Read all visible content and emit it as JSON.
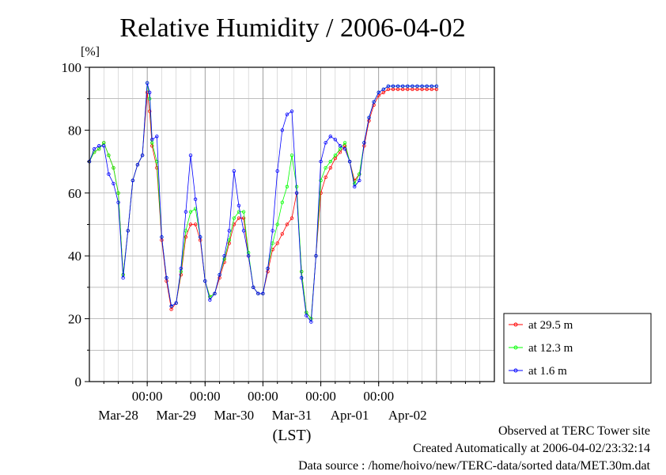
{
  "chart_data": {
    "type": "line",
    "title": "Relative Humidity / 2006-04-02",
    "ylabel": "[%]",
    "xlabel": "(LST)",
    "ylim": [
      0,
      100
    ],
    "yticks": [
      0,
      20,
      40,
      60,
      80,
      100
    ],
    "xlim": [
      "2006-03-27 00:00",
      "2006-04-03 00:00"
    ],
    "xticks": [
      {
        "time": "2006-03-28 00:00",
        "label": "00:00",
        "date": "Mar-28"
      },
      {
        "time": "2006-03-29 00:00",
        "label": "00:00",
        "date": "Mar-29"
      },
      {
        "time": "2006-03-30 00:00",
        "label": "00:00",
        "date": "Mar-30"
      },
      {
        "time": "2006-03-31 00:00",
        "label": "00:00",
        "date": "Mar-31"
      },
      {
        "time": "2006-04-01 00:00",
        "label": "00:00",
        "date": "Apr-01"
      }
    ],
    "date_labels": [
      {
        "time": "2006-03-27 12:00",
        "label": "Mar-28"
      },
      {
        "time": "2006-03-28 12:00",
        "label": "Mar-29"
      },
      {
        "time": "2006-03-29 12:00",
        "label": "Mar-30"
      },
      {
        "time": "2006-03-30 12:00",
        "label": "Mar-31"
      },
      {
        "time": "2006-03-31 12:00",
        "label": "Apr-01"
      },
      {
        "time": "2006-04-01 12:00",
        "label": "Apr-02"
      }
    ],
    "grid": true,
    "legend_position": "bottom-right, outside plot",
    "x": [
      "2006-03-27 00:00",
      "2006-03-27 02:00",
      "2006-03-27 04:00",
      "2006-03-27 06:00",
      "2006-03-27 08:00",
      "2006-03-27 10:00",
      "2006-03-27 12:00",
      "2006-03-27 14:00",
      "2006-03-27 16:00",
      "2006-03-27 18:00",
      "2006-03-27 20:00",
      "2006-03-27 22:00",
      "2006-03-28 00:00",
      "2006-03-28 01:00",
      "2006-03-28 02:00",
      "2006-03-28 04:00",
      "2006-03-28 06:00",
      "2006-03-28 08:00",
      "2006-03-28 10:00",
      "2006-03-28 12:00",
      "2006-03-28 14:00",
      "2006-03-28 16:00",
      "2006-03-28 18:00",
      "2006-03-28 20:00",
      "2006-03-28 22:00",
      "2006-03-29 00:00",
      "2006-03-29 02:00",
      "2006-03-29 04:00",
      "2006-03-29 06:00",
      "2006-03-29 08:00",
      "2006-03-29 10:00",
      "2006-03-29 12:00",
      "2006-03-29 14:00",
      "2006-03-29 16:00",
      "2006-03-29 18:00",
      "2006-03-29 20:00",
      "2006-03-29 22:00",
      "2006-03-30 00:00",
      "2006-03-30 02:00",
      "2006-03-30 04:00",
      "2006-03-30 06:00",
      "2006-03-30 08:00",
      "2006-03-30 10:00",
      "2006-03-30 12:00",
      "2006-03-30 14:00",
      "2006-03-30 16:00",
      "2006-03-30 18:00",
      "2006-03-30 20:00",
      "2006-03-30 22:00",
      "2006-03-31 00:00",
      "2006-03-31 02:00",
      "2006-03-31 04:00",
      "2006-03-31 06:00",
      "2006-03-31 08:00",
      "2006-03-31 10:00",
      "2006-03-31 12:00",
      "2006-03-31 14:00",
      "2006-03-31 16:00",
      "2006-03-31 18:00",
      "2006-03-31 20:00",
      "2006-03-31 22:00",
      "2006-04-01 00:00",
      "2006-04-01 02:00",
      "2006-04-01 04:00",
      "2006-04-01 06:00",
      "2006-04-01 08:00",
      "2006-04-01 10:00",
      "2006-04-01 12:00",
      "2006-04-01 14:00",
      "2006-04-01 16:00",
      "2006-04-01 18:00",
      "2006-04-01 20:00",
      "2006-04-01 22:00",
      "2006-04-02 00:00"
    ],
    "series": [
      {
        "name": "at 29.5 m",
        "color": "#ff0000",
        "values": [
          70,
          73,
          74,
          76,
          72,
          68,
          60,
          34,
          48,
          64,
          69,
          72,
          92,
          86,
          75,
          68,
          45,
          32,
          23,
          25,
          34,
          46,
          50,
          50,
          45,
          32,
          27,
          28,
          33,
          38,
          44,
          50,
          52,
          52,
          40,
          30,
          28,
          28,
          35,
          42,
          44,
          47,
          50,
          52,
          60,
          35,
          22,
          20,
          40,
          60,
          65,
          68,
          71,
          73,
          75,
          70,
          64,
          66,
          75,
          83,
          88,
          91,
          92,
          93,
          93,
          93,
          93,
          93,
          93,
          93,
          93,
          93,
          93,
          93
        ]
      },
      {
        "name": "at 12.3 m",
        "color": "#00ff00",
        "values": [
          70,
          73,
          74,
          76,
          72,
          68,
          60,
          34,
          48,
          64,
          69,
          72,
          95,
          90,
          76,
          70,
          46,
          33,
          24,
          25,
          35,
          48,
          54,
          55,
          46,
          32,
          27,
          28,
          34,
          39,
          45,
          52,
          54,
          54,
          41,
          30,
          28,
          28,
          36,
          44,
          50,
          57,
          62,
          72,
          62,
          35,
          22,
          20,
          40,
          64,
          68,
          70,
          72,
          74,
          76,
          70,
          63,
          66,
          76,
          84,
          89,
          92,
          93,
          94,
          94,
          94,
          94,
          94,
          94,
          94,
          94,
          94,
          94,
          94
        ]
      },
      {
        "name": "at 1.6 m",
        "color": "#0000ff",
        "values": [
          70,
          74,
          75,
          75,
          66,
          63,
          57,
          33,
          48,
          64,
          69,
          72,
          95,
          92,
          77,
          78,
          46,
          33,
          24,
          25,
          36,
          54,
          72,
          58,
          46,
          32,
          26,
          28,
          34,
          40,
          48,
          67,
          56,
          48,
          40,
          30,
          28,
          28,
          36,
          48,
          67,
          80,
          85,
          86,
          60,
          33,
          21,
          19,
          40,
          70,
          76,
          78,
          77,
          75,
          74,
          70,
          62,
          64,
          76,
          84,
          89,
          92,
          93,
          94,
          94,
          94,
          94,
          94,
          94,
          94,
          94,
          94,
          94,
          94
        ]
      }
    ]
  },
  "footer": {
    "site": "Observed at TERC Tower site",
    "created": "Created Automatically at 2006-04-02/23:32:14",
    "source": "Data source : /home/hoivo/new/TERC-data/sorted  data/MET.30m.dat"
  }
}
